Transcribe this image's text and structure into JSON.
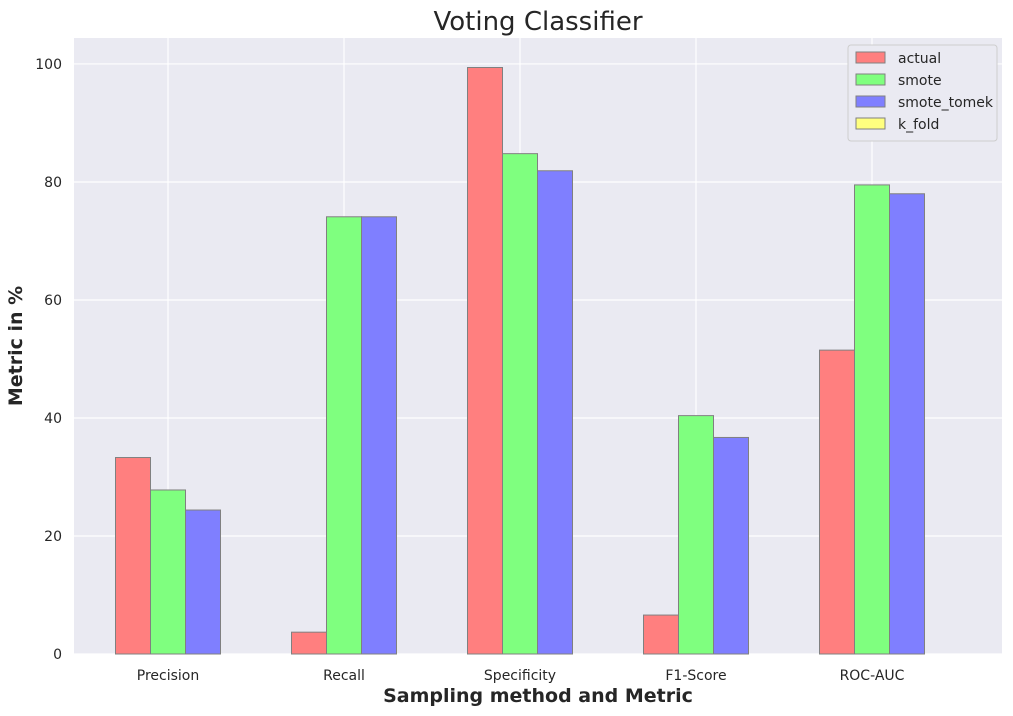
{
  "chart_data": {
    "type": "bar",
    "title": "Voting Classifier",
    "xlabel": "Sampling method and Metric",
    "ylabel": "Metric in %",
    "categories": [
      "Precision",
      "Recall",
      "Specificity",
      "F1-Score",
      "ROC-AUC"
    ],
    "series": [
      {
        "name": "actual",
        "color": "#ff7f7f",
        "values": [
          33.3,
          3.7,
          99.4,
          6.6,
          51.5
        ]
      },
      {
        "name": "smote",
        "color": "#7fff7f",
        "values": [
          27.8,
          74.1,
          84.8,
          40.4,
          79.5
        ]
      },
      {
        "name": "smote_tomek",
        "color": "#7f7fff",
        "values": [
          24.4,
          74.1,
          81.9,
          36.7,
          78.0
        ]
      },
      {
        "name": "k_fold",
        "color": "#ffff7f",
        "values": [
          0,
          0,
          0,
          0,
          0
        ]
      }
    ],
    "ylim": [
      0,
      104.4
    ],
    "yticks": [
      0,
      20,
      40,
      60,
      80,
      100
    ],
    "grid": true,
    "legend_position": "top-right",
    "background_color": "#eaeaf2",
    "bar_edge_color": "#808080"
  }
}
